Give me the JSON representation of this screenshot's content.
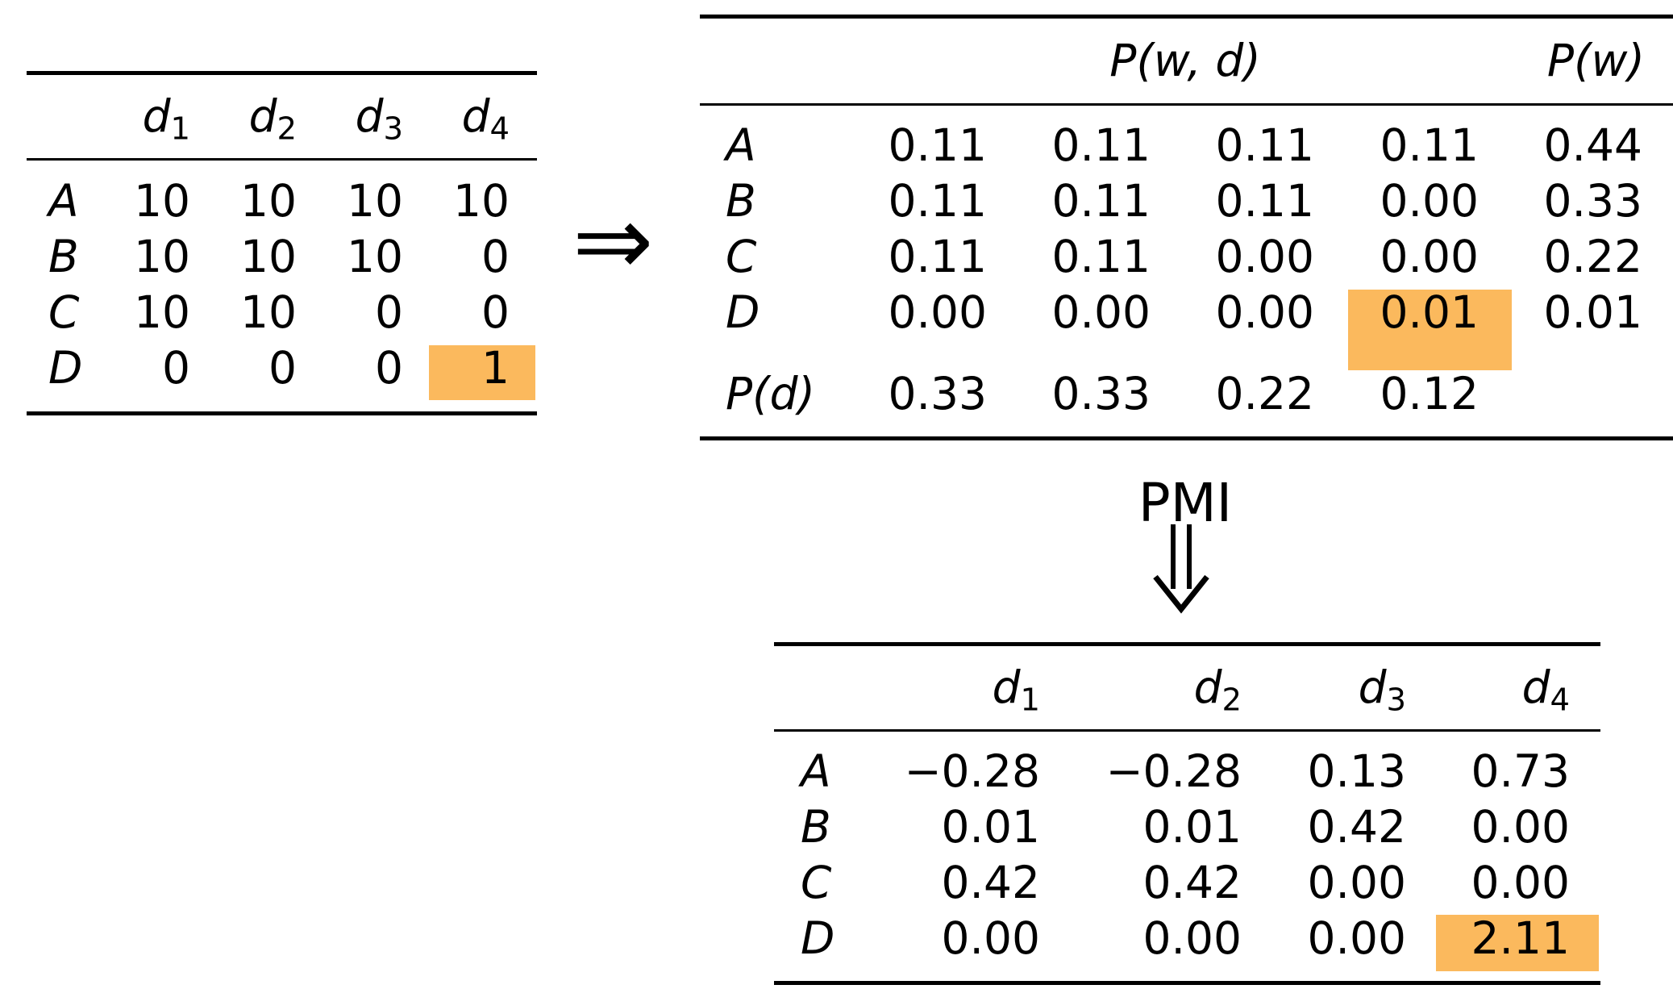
{
  "counts_table": {
    "headers": [
      "d",
      "d",
      "d",
      "d"
    ],
    "subs": [
      "1",
      "2",
      "3",
      "4"
    ],
    "row_labels": [
      "A",
      "B",
      "C",
      "D"
    ],
    "rows": [
      [
        "10",
        "10",
        "10",
        "10"
      ],
      [
        "10",
        "10",
        "10",
        "0"
      ],
      [
        "10",
        "10",
        "0",
        "0"
      ],
      [
        "0",
        "0",
        "0",
        "1"
      ]
    ],
    "highlight": {
      "row": 3,
      "col": 3
    }
  },
  "implies_symbol": "⇒",
  "prob_table": {
    "header_joint": "P(w, d)",
    "header_marginal": "P(w)",
    "row_labels": [
      "A",
      "B",
      "C",
      "D"
    ],
    "rows": [
      [
        "0.11",
        "0.11",
        "0.11",
        "0.11",
        "0.44"
      ],
      [
        "0.11",
        "0.11",
        "0.11",
        "0.00",
        "0.33"
      ],
      [
        "0.11",
        "0.11",
        "0.00",
        "0.00",
        "0.22"
      ],
      [
        "0.00",
        "0.00",
        "0.00",
        "0.01",
        "0.01"
      ]
    ],
    "pd_label": "P(d)",
    "pd_values": [
      "0.33",
      "0.33",
      "0.22",
      "0.12"
    ],
    "highlight": {
      "row": 3,
      "col": 3
    }
  },
  "pmi_label": "PMI",
  "pmi_table": {
    "headers": [
      "d",
      "d",
      "d",
      "d"
    ],
    "subs": [
      "1",
      "2",
      "3",
      "4"
    ],
    "row_labels": [
      "A",
      "B",
      "C",
      "D"
    ],
    "rows": [
      [
        "−0.28",
        "−0.28",
        "0.13",
        "0.73"
      ],
      [
        "0.01",
        "0.01",
        "0.42",
        "0.00"
      ],
      [
        "0.42",
        "0.42",
        "0.00",
        "0.00"
      ],
      [
        "0.00",
        "0.00",
        "0.00",
        "2.11"
      ]
    ],
    "highlight": {
      "row": 3,
      "col": 3
    }
  },
  "colors": {
    "highlight": "#fbb95d",
    "rule": "#000000"
  }
}
